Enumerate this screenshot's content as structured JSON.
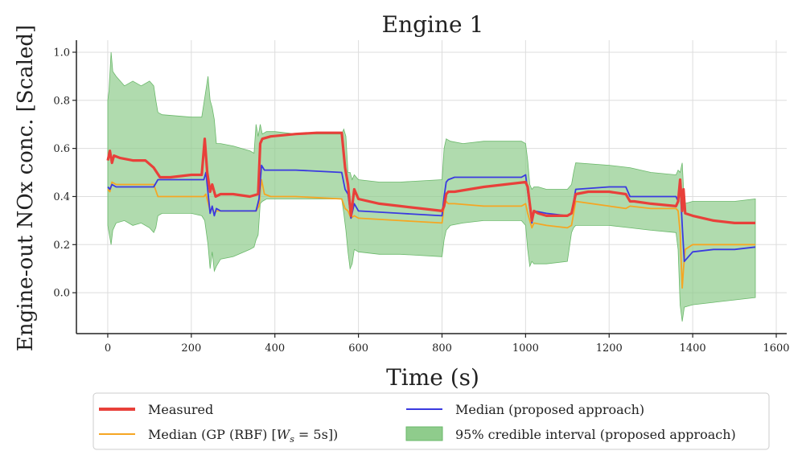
{
  "chart_data": {
    "type": "line",
    "title": "Engine 1",
    "xlabel": "Time (s)",
    "ylabel": "Engine-out NOx conc. [Scaled]",
    "xlim": [
      -75,
      1625
    ],
    "ylim": [
      -0.17,
      1.05
    ],
    "xticks": [
      0,
      200,
      400,
      600,
      800,
      1000,
      1200,
      1400,
      1600
    ],
    "xtick_labels": [
      "0",
      "200",
      "400",
      "600",
      "800",
      "1000",
      "1200",
      "1400",
      "1600"
    ],
    "yticks": [
      0.0,
      0.2,
      0.4,
      0.6,
      0.8,
      1.0
    ],
    "ytick_labels": [
      "0.0",
      "0.2",
      "0.4",
      "0.6",
      "0.8",
      "1.0"
    ],
    "grid": true,
    "legend_position": "below",
    "legend": {
      "measured": "Measured",
      "median_proposed": "Median (proposed approach)",
      "median_gp_prefix": "Median (GP (RBF) [",
      "median_gp_math": "W",
      "median_gp_sub": "s",
      "median_gp_suffix": " = 5s])",
      "ci": "95% credible interval (proposed approach)"
    },
    "colors": {
      "measured": "#e8403a",
      "median_proposed": "#3a3ae0",
      "median_gp": "#f5a623",
      "ci_fill": "#8fcc8c",
      "ci_edge": "#6ab86a"
    },
    "series": [
      {
        "name": "Measured",
        "x": [
          0,
          5,
          10,
          15,
          30,
          60,
          90,
          110,
          125,
          150,
          200,
          225,
          232,
          238,
          245,
          250,
          258,
          270,
          300,
          340,
          360,
          365,
          370,
          390,
          450,
          500,
          560,
          568,
          575,
          582,
          590,
          600,
          650,
          700,
          750,
          800,
          805,
          810,
          815,
          830,
          900,
          950,
          1000,
          1005,
          1015,
          1020,
          1030,
          1050,
          1100,
          1110,
          1120,
          1150,
          1200,
          1240,
          1250,
          1260,
          1300,
          1360,
          1365,
          1370,
          1375,
          1378,
          1382,
          1400,
          1450,
          1500,
          1550
        ],
        "y": [
          0.55,
          0.59,
          0.54,
          0.57,
          0.56,
          0.55,
          0.55,
          0.52,
          0.48,
          0.48,
          0.49,
          0.49,
          0.64,
          0.5,
          0.42,
          0.45,
          0.4,
          0.41,
          0.41,
          0.4,
          0.41,
          0.62,
          0.64,
          0.65,
          0.66,
          0.665,
          0.665,
          0.52,
          0.45,
          0.32,
          0.43,
          0.39,
          0.37,
          0.36,
          0.35,
          0.34,
          0.36,
          0.41,
          0.42,
          0.42,
          0.44,
          0.45,
          0.46,
          0.44,
          0.3,
          0.34,
          0.33,
          0.32,
          0.32,
          0.33,
          0.41,
          0.42,
          0.42,
          0.41,
          0.38,
          0.38,
          0.37,
          0.36,
          0.38,
          0.47,
          0.34,
          0.43,
          0.33,
          0.32,
          0.3,
          0.29,
          0.29
        ]
      },
      {
        "name": "Median (proposed approach)",
        "x": [
          0,
          5,
          10,
          20,
          60,
          110,
          120,
          200,
          230,
          235,
          245,
          250,
          255,
          260,
          270,
          300,
          355,
          362,
          368,
          375,
          390,
          450,
          560,
          568,
          575,
          582,
          590,
          600,
          700,
          800,
          805,
          810,
          815,
          830,
          900,
          990,
          1000,
          1005,
          1015,
          1020,
          1050,
          1100,
          1110,
          1120,
          1200,
          1240,
          1250,
          1300,
          1360,
          1365,
          1370,
          1375,
          1380,
          1400,
          1450,
          1500,
          1550
        ],
        "y": [
          0.44,
          0.43,
          0.45,
          0.44,
          0.44,
          0.44,
          0.47,
          0.47,
          0.47,
          0.5,
          0.33,
          0.36,
          0.32,
          0.35,
          0.34,
          0.34,
          0.34,
          0.39,
          0.53,
          0.51,
          0.51,
          0.51,
          0.5,
          0.43,
          0.41,
          0.31,
          0.37,
          0.34,
          0.33,
          0.32,
          0.4,
          0.46,
          0.47,
          0.48,
          0.48,
          0.48,
          0.49,
          0.42,
          0.29,
          0.34,
          0.33,
          0.32,
          0.33,
          0.43,
          0.44,
          0.44,
          0.4,
          0.4,
          0.4,
          0.38,
          0.45,
          0.28,
          0.13,
          0.17,
          0.18,
          0.18,
          0.19
        ]
      },
      {
        "name": "Median (GP (RBF) [W_s = 5s])",
        "x": [
          0,
          5,
          10,
          20,
          60,
          110,
          120,
          200,
          230,
          235,
          245,
          250,
          255,
          260,
          300,
          355,
          362,
          368,
          375,
          390,
          450,
          560,
          568,
          575,
          582,
          590,
          600,
          700,
          800,
          805,
          810,
          815,
          830,
          900,
          990,
          1000,
          1005,
          1015,
          1020,
          1050,
          1100,
          1110,
          1120,
          1200,
          1240,
          1250,
          1300,
          1360,
          1365,
          1370,
          1375,
          1378,
          1382,
          1400,
          1450,
          1500,
          1550
        ],
        "y": [
          0.43,
          0.42,
          0.46,
          0.45,
          0.45,
          0.45,
          0.4,
          0.4,
          0.4,
          0.41,
          0.34,
          0.35,
          0.33,
          0.34,
          0.34,
          0.34,
          0.36,
          0.47,
          0.41,
          0.4,
          0.4,
          0.39,
          0.35,
          0.34,
          0.31,
          0.32,
          0.31,
          0.3,
          0.29,
          0.36,
          0.38,
          0.37,
          0.37,
          0.36,
          0.36,
          0.37,
          0.33,
          0.27,
          0.29,
          0.28,
          0.27,
          0.28,
          0.38,
          0.36,
          0.35,
          0.36,
          0.35,
          0.35,
          0.34,
          0.25,
          0.02,
          0.1,
          0.18,
          0.2,
          0.2,
          0.2,
          0.2
        ]
      }
    ],
    "credible_interval": {
      "name": "95% credible interval (proposed approach)",
      "x": [
        0,
        3,
        8,
        12,
        20,
        40,
        60,
        80,
        100,
        110,
        115,
        120,
        130,
        200,
        225,
        232,
        240,
        245,
        250,
        255,
        260,
        270,
        300,
        340,
        350,
        355,
        360,
        365,
        370,
        380,
        400,
        450,
        500,
        560,
        565,
        570,
        575,
        580,
        585,
        590,
        600,
        650,
        700,
        800,
        805,
        810,
        820,
        850,
        900,
        990,
        1000,
        1005,
        1010,
        1015,
        1020,
        1030,
        1050,
        1100,
        1110,
        1115,
        1120,
        1200,
        1250,
        1300,
        1360,
        1365,
        1370,
        1375,
        1380,
        1400,
        1450,
        1500,
        1550
      ],
      "upper": [
        0.8,
        0.84,
        1.0,
        0.92,
        0.9,
        0.86,
        0.88,
        0.86,
        0.88,
        0.86,
        0.8,
        0.75,
        0.74,
        0.73,
        0.73,
        0.81,
        0.9,
        0.8,
        0.77,
        0.72,
        0.62,
        0.62,
        0.61,
        0.59,
        0.58,
        0.7,
        0.65,
        0.7,
        0.66,
        0.67,
        0.67,
        0.66,
        0.66,
        0.66,
        0.68,
        0.65,
        0.5,
        0.5,
        0.47,
        0.49,
        0.47,
        0.46,
        0.46,
        0.47,
        0.6,
        0.64,
        0.63,
        0.62,
        0.63,
        0.63,
        0.62,
        0.55,
        0.45,
        0.43,
        0.44,
        0.44,
        0.43,
        0.43,
        0.45,
        0.5,
        0.54,
        0.53,
        0.52,
        0.5,
        0.49,
        0.51,
        0.5,
        0.54,
        0.37,
        0.38,
        0.38,
        0.38,
        0.39
      ],
      "lower": [
        0.28,
        0.25,
        0.2,
        0.26,
        0.29,
        0.3,
        0.28,
        0.29,
        0.27,
        0.25,
        0.27,
        0.32,
        0.33,
        0.33,
        0.32,
        0.3,
        0.2,
        0.1,
        0.17,
        0.09,
        0.11,
        0.14,
        0.15,
        0.18,
        0.19,
        0.22,
        0.24,
        0.37,
        0.38,
        0.39,
        0.39,
        0.39,
        0.39,
        0.39,
        0.33,
        0.26,
        0.17,
        0.1,
        0.12,
        0.18,
        0.17,
        0.16,
        0.16,
        0.15,
        0.22,
        0.26,
        0.28,
        0.29,
        0.3,
        0.3,
        0.28,
        0.18,
        0.11,
        0.13,
        0.12,
        0.12,
        0.12,
        0.13,
        0.25,
        0.27,
        0.28,
        0.28,
        0.27,
        0.26,
        0.25,
        0.18,
        -0.05,
        -0.12,
        -0.06,
        -0.05,
        -0.04,
        -0.03,
        -0.02
      ]
    }
  }
}
